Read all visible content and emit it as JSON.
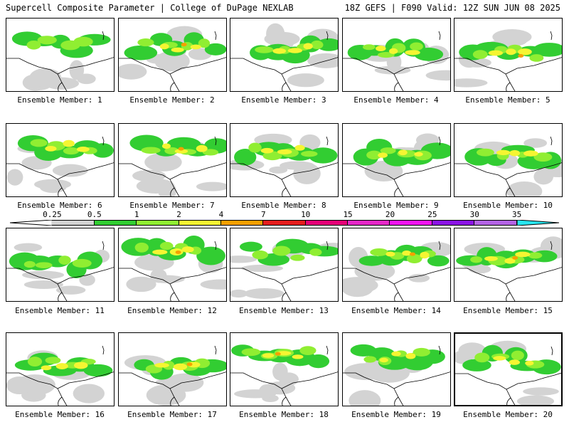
{
  "header": {
    "left_title": "Supercell Composite Parameter | College of DuPage NEXLAB",
    "right_title": "18Z GEFS | F090 Valid: 12Z SUN JUN 08 2025"
  },
  "colorbar": {
    "tick_labels": [
      "0.25",
      "0.5",
      "1",
      "2",
      "4",
      "7",
      "10",
      "15",
      "20",
      "25",
      "30",
      "35"
    ],
    "colors": [
      "#d3d3d3",
      "#32cd32",
      "#90ee32",
      "#f5f532",
      "#f5a000",
      "#e61e1e",
      "#e60078",
      "#e628c8",
      "#f014f0",
      "#8c14e6",
      "#b464e6",
      "#28e6f0"
    ]
  },
  "members": [
    {
      "label": "Ensemble Member: 1",
      "intensity": 1
    },
    {
      "label": "Ensemble Member: 2",
      "intensity": 3
    },
    {
      "label": "Ensemble Member: 3",
      "intensity": 2
    },
    {
      "label": "Ensemble Member: 4",
      "intensity": 2
    },
    {
      "label": "Ensemble Member: 5",
      "intensity": 3
    },
    {
      "label": "Ensemble Member: 6",
      "intensity": 2
    },
    {
      "label": "Ensemble Member: 7",
      "intensity": 3
    },
    {
      "label": "Ensemble Member: 8",
      "intensity": 2
    },
    {
      "label": "Ensemble Member: 9",
      "intensity": 2
    },
    {
      "label": "Ensemble Member: 10",
      "intensity": 2
    },
    {
      "label": "Ensemble Member: 11",
      "intensity": 1
    },
    {
      "label": "Ensemble Member: 12",
      "intensity": 3
    },
    {
      "label": "Ensemble Member: 13",
      "intensity": 1
    },
    {
      "label": "Ensemble Member: 14",
      "intensity": 3
    },
    {
      "label": "Ensemble Member: 15",
      "intensity": 3
    },
    {
      "label": "Ensemble Member: 16",
      "intensity": 2
    },
    {
      "label": "Ensemble Member: 17",
      "intensity": 3
    },
    {
      "label": "Ensemble Member: 18",
      "intensity": 3
    },
    {
      "label": "Ensemble Member: 19",
      "intensity": 2
    },
    {
      "label": "Ensemble Member: 20",
      "intensity": 2
    }
  ],
  "selected_member": "Ensemble Member: 20"
}
